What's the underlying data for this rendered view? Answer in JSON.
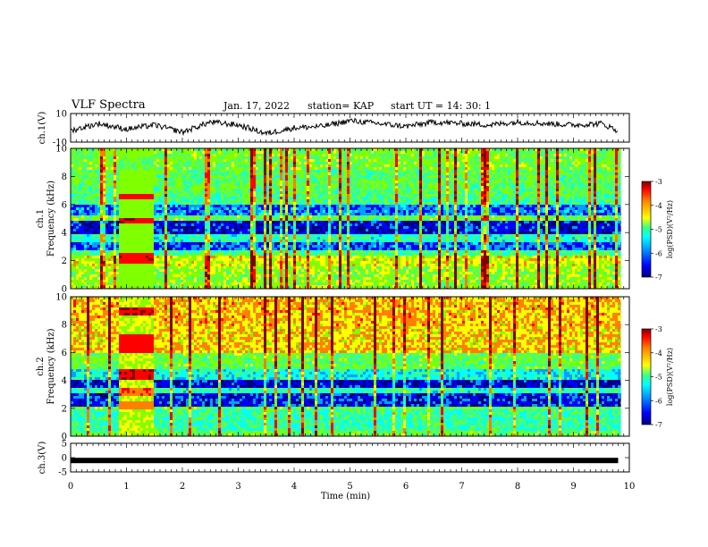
{
  "header": {
    "title": "VLF Spectra",
    "date": "Jan. 17, 2022",
    "station": "station= KAP",
    "start": "start UT = 14: 30: 1"
  },
  "chart_data": [
    {
      "type": "line",
      "panel": "ch1-waveform",
      "ylabel": "ch.1(V)",
      "ylim": [
        -10,
        10
      ],
      "yticks": [
        "10",
        "-10"
      ],
      "x": [
        0.0,
        0.5,
        1.0,
        1.5,
        2.0,
        2.5,
        3.0,
        3.5,
        4.0,
        4.5,
        5.0,
        5.5,
        6.0,
        6.5,
        7.0,
        7.5,
        8.0,
        8.5,
        9.0,
        9.5,
        9.8
      ],
      "values": [
        -2,
        3,
        -1,
        2,
        -3,
        4,
        2,
        -4,
        0,
        1,
        5,
        3,
        1,
        4,
        3,
        2,
        4,
        3,
        2,
        3,
        -2
      ]
    },
    {
      "type": "heatmap",
      "panel": "ch1-spectrogram",
      "ylabel": "ch.1 Frequency (kHz)",
      "ylim": [
        0,
        10
      ],
      "yticks": [
        "0",
        "2",
        "4",
        "6",
        "8",
        "10"
      ],
      "colorbar": {
        "label": "log(PSD)(V²/Hz)",
        "range": [
          -7,
          -3
        ],
        "ticks": [
          "-3",
          "-4",
          "-5",
          "-6",
          "-7"
        ]
      }
    },
    {
      "type": "heatmap",
      "panel": "ch2-spectrogram",
      "ylabel": "ch.2 Frequency (kHz)",
      "ylim": [
        0,
        10
      ],
      "yticks": [
        "0",
        "2",
        "4",
        "6",
        "8",
        "10"
      ],
      "colorbar": {
        "label": "log(PSD)(V²/Hz)",
        "range": [
          -7,
          -3
        ],
        "ticks": [
          "-3",
          "-4",
          "-5",
          "-6",
          "-7"
        ]
      }
    },
    {
      "type": "line",
      "panel": "ch3-waveform",
      "ylabel": "ch.3(V)",
      "ylim": [
        -5,
        5
      ],
      "yticks": [
        "5",
        "0",
        "-5"
      ],
      "x": [
        0,
        9.8
      ],
      "values": [
        -1,
        -1
      ]
    }
  ],
  "xaxis": {
    "label": "Time (min)",
    "range": [
      0,
      10
    ],
    "ticks": [
      "0",
      "1",
      "2",
      "3",
      "4",
      "5",
      "6",
      "7",
      "8",
      "9",
      "10"
    ]
  },
  "colors": {
    "scale": [
      "#00007f",
      "#0000ff",
      "#00a0ff",
      "#00ffff",
      "#40ff80",
      "#80ff00",
      "#ffff00",
      "#ff8000",
      "#ff0000",
      "#7f0000"
    ]
  }
}
